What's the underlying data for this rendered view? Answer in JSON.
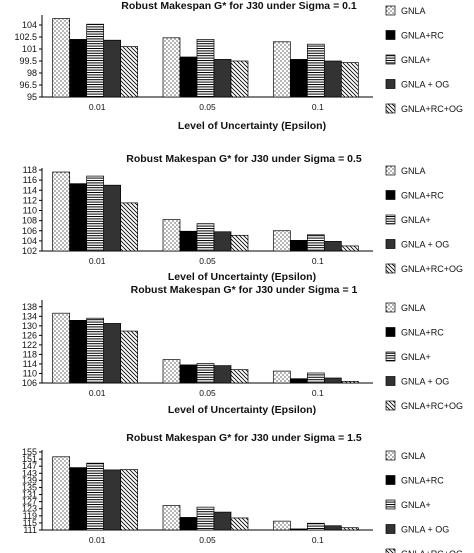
{
  "colors": {
    "GNLA": "#ffffff",
    "GNLA+RC": "#000000",
    "GNLA+": "#ffffff",
    "GNLA + OG": "#333333",
    "GNLA+RC+OG": "#ffffff"
  },
  "chart_data": [
    {
      "type": "bar",
      "title": "Robust Makespan G* for J30 under Sigma = 0.1",
      "xlabel": "Level of Uncertainty (Epsilon)",
      "ylabel": "",
      "categories": [
        "0.01",
        "0.05",
        "0.1"
      ],
      "ylim": [
        95,
        105
      ],
      "yticks": [
        "95",
        "96.5",
        "98",
        "99.5",
        "101",
        "102.5",
        "104"
      ],
      "legend_position": "right",
      "series": [
        {
          "name": "GNLA",
          "values": [
            104.8,
            102.4,
            101.9
          ]
        },
        {
          "name": "GNLA+RC",
          "values": [
            102.2,
            100.0,
            99.7
          ]
        },
        {
          "name": "GNLA+",
          "values": [
            104.1,
            102.2,
            101.6
          ]
        },
        {
          "name": "GNLA + OG",
          "values": [
            102.1,
            99.7,
            99.5
          ]
        },
        {
          "name": "GNLA+RC+OG",
          "values": [
            101.3,
            99.5,
            99.3
          ]
        }
      ]
    },
    {
      "type": "bar",
      "title": "Robust Makespan G* for J30 under Sigma = 0.5",
      "xlabel": "Level of Uncertainty (Epsilon)",
      "ylabel": "",
      "categories": [
        "0.01",
        "0.05",
        "0.1"
      ],
      "ylim": [
        102,
        118
      ],
      "yticks": [
        "102",
        "104",
        "106",
        "108",
        "110",
        "112",
        "114",
        "116",
        "118"
      ],
      "legend_position": "right",
      "series": [
        {
          "name": "GNLA",
          "values": [
            117.6,
            108.2,
            106.0
          ]
        },
        {
          "name": "GNLA+RC",
          "values": [
            115.3,
            105.9,
            104.1
          ]
        },
        {
          "name": "GNLA+",
          "values": [
            116.8,
            107.4,
            105.2
          ]
        },
        {
          "name": "GNLA + OG",
          "values": [
            115.0,
            105.8,
            103.9
          ]
        },
        {
          "name": "GNLA+RC+OG",
          "values": [
            111.5,
            105.1,
            103.0
          ]
        }
      ]
    },
    {
      "type": "bar",
      "title": "Robust Makespan G* for J30 under Sigma = 1",
      "xlabel": "Level of Uncertainty (Epsilon)",
      "ylabel": "",
      "categories": [
        "0.01",
        "0.05",
        "0.1"
      ],
      "ylim": [
        106,
        140
      ],
      "yticks": [
        "106",
        "110",
        "114",
        "118",
        "122",
        "126",
        "130",
        "134",
        "138"
      ],
      "legend_position": "right",
      "series": [
        {
          "name": "GNLA",
          "values": [
            135.3,
            115.8,
            111.0
          ]
        },
        {
          "name": "GNLA+RC",
          "values": [
            132.3,
            113.6,
            107.8
          ]
        },
        {
          "name": "GNLA+",
          "values": [
            133.2,
            114.2,
            110.2
          ]
        },
        {
          "name": "GNLA + OG",
          "values": [
            131.0,
            113.3,
            108.1
          ]
        },
        {
          "name": "GNLA+RC+OG",
          "values": [
            127.8,
            111.6,
            106.7
          ]
        }
      ]
    },
    {
      "type": "bar",
      "title": "Robust Makespan G* for J30 under Sigma = 1.5",
      "xlabel": "",
      "ylabel": "",
      "categories": [
        "0.01",
        "0.05",
        "0.1"
      ],
      "ylim": [
        111,
        155
      ],
      "yticks": [
        "111",
        "115",
        "119",
        "123",
        "127",
        "131",
        "135",
        "139",
        "143",
        "147",
        "151",
        "155"
      ],
      "legend_position": "right",
      "series": [
        {
          "name": "GNLA",
          "values": [
            152.3,
            124.8,
            116.0
          ]
        },
        {
          "name": "GNLA+RC",
          "values": [
            146.2,
            118.1,
            111.6
          ]
        },
        {
          "name": "GNLA+",
          "values": [
            148.7,
            123.9,
            114.8
          ]
        },
        {
          "name": "GNLA + OG",
          "values": [
            144.9,
            121.1,
            113.4
          ]
        },
        {
          "name": "GNLA+RC+OG",
          "values": [
            145.1,
            117.8,
            112.3
          ]
        }
      ]
    }
  ]
}
